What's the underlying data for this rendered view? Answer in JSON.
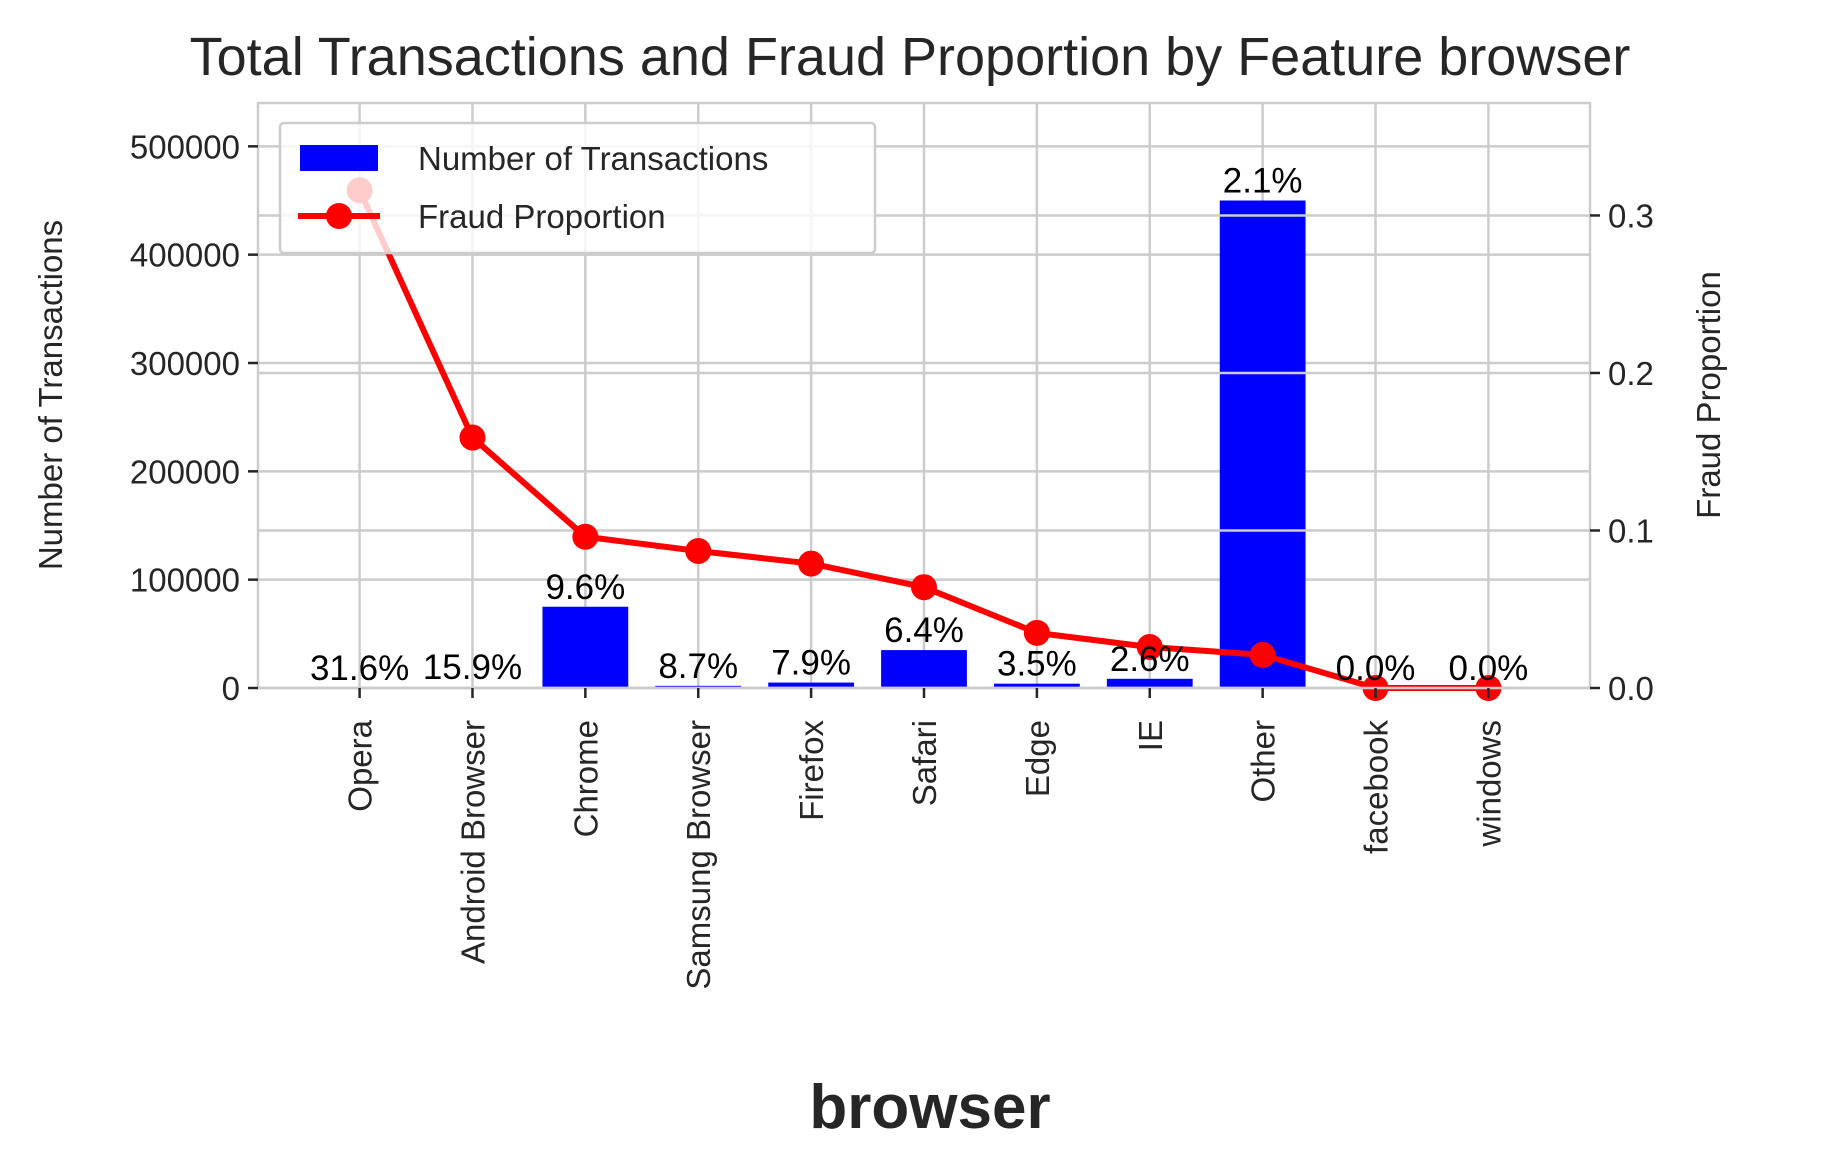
{
  "chart_data": {
    "type": "bar",
    "title": "Total Transactions and Fraud Proportion by Feature browser",
    "xlabel": "browser",
    "ylabel": "Number of Transactions",
    "y2label": "Fraud Proportion",
    "ylim": [
      0,
      500000
    ],
    "y2lim": [
      0.0,
      0.3
    ],
    "yticks": [
      0,
      100000,
      200000,
      300000,
      400000,
      500000
    ],
    "y2ticks": [
      0.0,
      0.1,
      0.2,
      0.3
    ],
    "grid": true,
    "legend_position": "upper-left",
    "categories": [
      "Opera",
      "Android Browser",
      "Chrome",
      "Samsung Browser",
      "Firefox",
      "Safari",
      "Edge",
      "IE",
      "Other",
      "facebook",
      "windows"
    ],
    "series": [
      {
        "name": "Number of Transactions",
        "type": "bar",
        "axis": "left",
        "color": "#0000ff",
        "values": [
          150,
          800,
          75000,
          2000,
          5000,
          35000,
          4000,
          8500,
          450000,
          40,
          10
        ]
      },
      {
        "name": "Fraud Proportion",
        "type": "line",
        "axis": "right",
        "color": "#ff0000",
        "values": [
          0.316,
          0.159,
          0.096,
          0.087,
          0.079,
          0.064,
          0.035,
          0.026,
          0.021,
          0.0,
          0.0
        ]
      }
    ],
    "bar_labels": [
      "31.6%",
      "15.9%",
      "9.6%",
      "8.7%",
      "7.9%",
      "6.4%",
      "3.5%",
      "2.6%",
      "2.1%",
      "0.0%",
      "0.0%"
    ]
  }
}
